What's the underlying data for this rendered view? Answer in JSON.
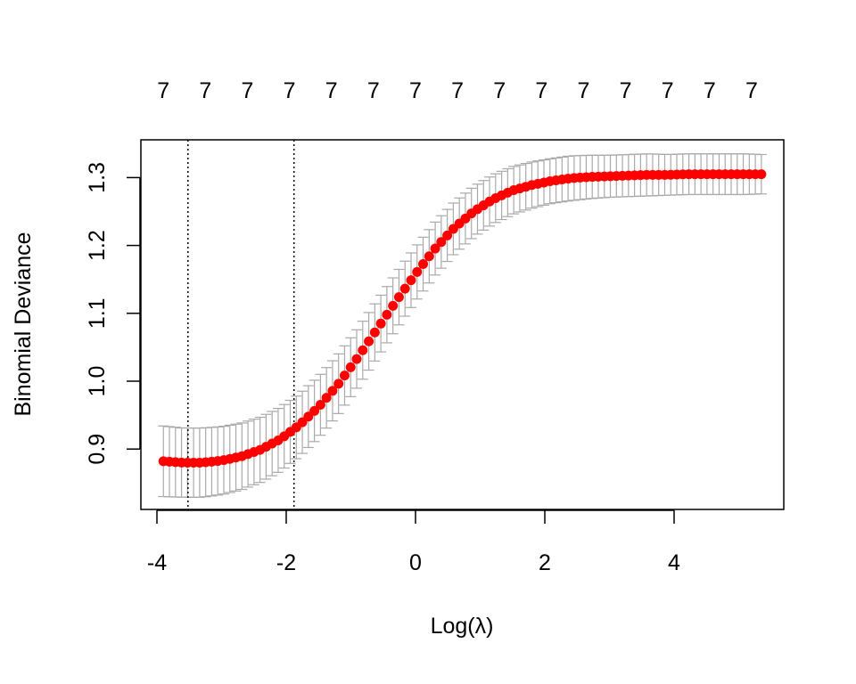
{
  "chart_data": {
    "type": "line",
    "title": "",
    "xlabel": "Log(λ)",
    "ylabel": "Binomial Deviance",
    "xlim": [
      -4.2,
      5.7
    ],
    "ylim": [
      0.81,
      1.355
    ],
    "x_ticks": [
      -4,
      -2,
      0,
      2,
      4
    ],
    "x_tick_labels": [
      "-4",
      "-2",
      "0",
      "2",
      "4"
    ],
    "y_ticks": [
      0.9,
      1.0,
      1.1,
      1.2,
      1.3
    ],
    "y_tick_labels": [
      "0.9",
      "1.0",
      "1.1",
      "1.2",
      "1.3"
    ],
    "top_axis_labels": [
      "7",
      "7",
      "7",
      "7",
      "7",
      "7",
      "7",
      "7",
      "7",
      "7",
      "7",
      "7",
      "7",
      "7",
      "7"
    ],
    "top_axis_x": [
      -3.9,
      -3.25,
      -2.6,
      -1.95,
      -1.3,
      -0.65,
      0,
      0.65,
      1.3,
      1.95,
      2.6,
      3.25,
      3.9,
      4.55,
      5.2
    ],
    "vlines": [
      -3.52,
      -1.88
    ],
    "series": [
      {
        "x": [
          -3.9,
          -3.6,
          -3.3,
          -3.0,
          -2.7,
          -2.4,
          -2.1,
          -1.8,
          -1.5,
          -1.2,
          -0.9,
          -0.6,
          -0.3,
          0.0,
          0.3,
          0.6,
          0.9,
          1.2,
          1.5,
          1.8,
          2.1,
          2.4,
          2.7,
          3.0,
          3.3,
          3.6,
          3.9,
          4.2,
          4.5,
          4.8,
          5.1,
          5.35
        ],
        "values": [
          0.882,
          0.88,
          0.88,
          0.883,
          0.889,
          0.899,
          0.914,
          0.935,
          0.962,
          0.995,
          1.034,
          1.076,
          1.118,
          1.158,
          1.195,
          1.226,
          1.25,
          1.268,
          1.281,
          1.289,
          1.295,
          1.299,
          1.301,
          1.302,
          1.303,
          1.304,
          1.304,
          1.305,
          1.305,
          1.305,
          1.305,
          1.305
        ],
        "lower": [
          0.83,
          0.829,
          0.829,
          0.833,
          0.84,
          0.851,
          0.867,
          0.889,
          0.917,
          0.951,
          0.991,
          1.034,
          1.077,
          1.118,
          1.156,
          1.188,
          1.213,
          1.232,
          1.246,
          1.255,
          1.262,
          1.266,
          1.269,
          1.271,
          1.272,
          1.273,
          1.274,
          1.275,
          1.275,
          1.275,
          1.275,
          1.276
        ],
        "upper": [
          0.934,
          0.931,
          0.931,
          0.933,
          0.938,
          0.947,
          0.961,
          0.981,
          1.007,
          1.039,
          1.077,
          1.118,
          1.159,
          1.198,
          1.234,
          1.264,
          1.287,
          1.304,
          1.316,
          1.323,
          1.328,
          1.332,
          1.333,
          1.333,
          1.334,
          1.335,
          1.334,
          1.335,
          1.335,
          1.335,
          1.335,
          1.334
        ],
        "color": "#ff0000",
        "error_bar_color": "#a9a9a9"
      }
    ],
    "grid": false,
    "legend": "none"
  }
}
